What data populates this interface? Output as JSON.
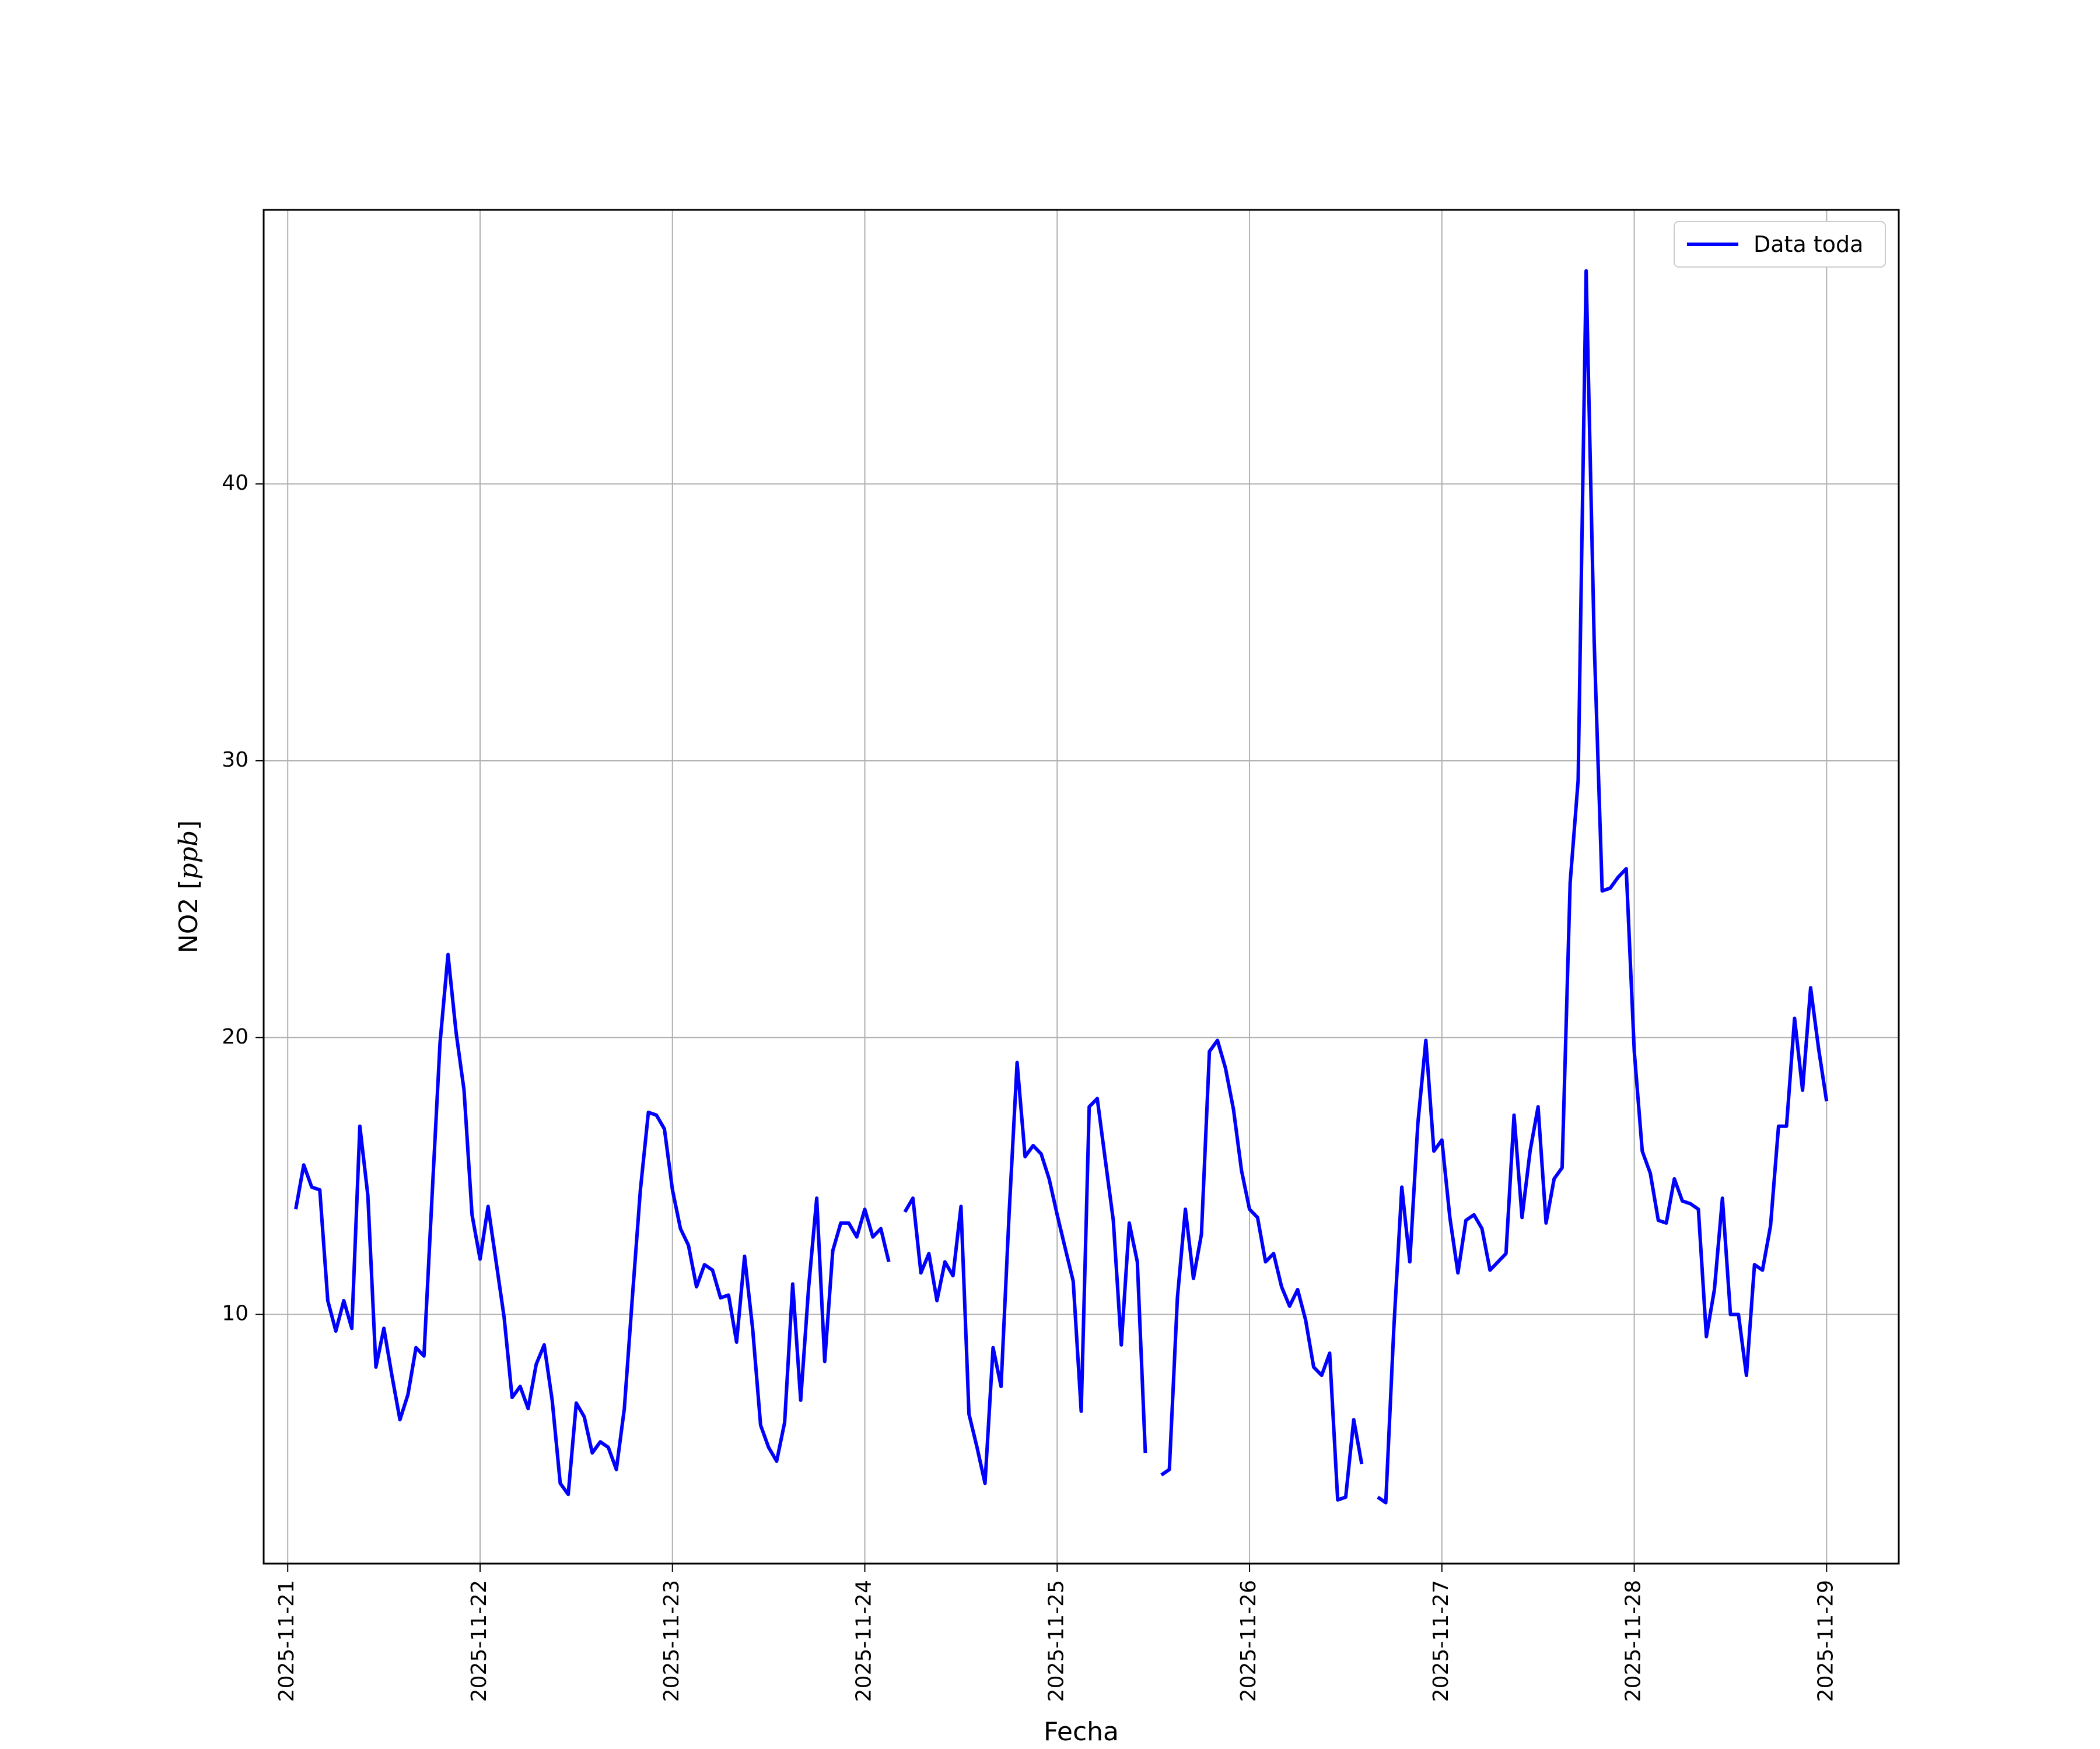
{
  "chart_data": {
    "type": "line",
    "title": "",
    "xlabel": "Fecha",
    "ylabel": {
      "prefix": "NO2 [",
      "unit": "ppb",
      "suffix": "]"
    },
    "x_range": [
      "2025-11-20T21:00",
      "2025-11-29T09:00"
    ],
    "ylim": [
      1,
      49.9
    ],
    "grid": true,
    "legend_position": "top-right",
    "x_ticks": [
      "2025-11-21",
      "2025-11-22",
      "2025-11-23",
      "2025-11-24",
      "2025-11-25",
      "2025-11-26",
      "2025-11-27",
      "2025-11-28",
      "2025-11-29"
    ],
    "y_ticks": [
      10,
      20,
      30,
      40
    ],
    "series": [
      {
        "name": "Data toda",
        "color": "#0000ff",
        "x": [
          "2025-11-21T01:00",
          "2025-11-21T02:00",
          "2025-11-21T03:00",
          "2025-11-21T04:00",
          "2025-11-21T05:00",
          "2025-11-21T06:00",
          "2025-11-21T07:00",
          "2025-11-21T08:00",
          "2025-11-21T09:00",
          "2025-11-21T10:00",
          "2025-11-21T11:00",
          "2025-11-21T12:00",
          "2025-11-21T13:00",
          "2025-11-21T14:00",
          "2025-11-21T15:00",
          "2025-11-21T16:00",
          "2025-11-21T17:00",
          "2025-11-21T18:00",
          "2025-11-21T19:00",
          "2025-11-21T20:00",
          "2025-11-21T21:00",
          "2025-11-21T22:00",
          "2025-11-21T23:00",
          "2025-11-22T00:00",
          "2025-11-22T01:00",
          "2025-11-22T02:00",
          "2025-11-22T03:00",
          "2025-11-22T04:00",
          "2025-11-22T05:00",
          "2025-11-22T06:00",
          "2025-11-22T07:00",
          "2025-11-22T08:00",
          "2025-11-22T09:00",
          "2025-11-22T10:00",
          "2025-11-22T11:00",
          "2025-11-22T12:00",
          "2025-11-22T13:00",
          "2025-11-22T14:00",
          "2025-11-22T15:00",
          "2025-11-22T16:00",
          "2025-11-22T17:00",
          "2025-11-22T18:00",
          "2025-11-22T19:00",
          "2025-11-22T20:00",
          "2025-11-22T21:00",
          "2025-11-22T22:00",
          "2025-11-22T23:00",
          "2025-11-23T00:00",
          "2025-11-23T01:00",
          "2025-11-23T02:00",
          "2025-11-23T03:00",
          "2025-11-23T04:00",
          "2025-11-23T05:00",
          "2025-11-23T06:00",
          "2025-11-23T07:00",
          "2025-11-23T08:00",
          "2025-11-23T09:00",
          "2025-11-23T10:00",
          "2025-11-23T11:00",
          "2025-11-23T12:00",
          "2025-11-23T13:00",
          "2025-11-23T14:00",
          "2025-11-23T15:00",
          "2025-11-23T16:00",
          "2025-11-23T17:00",
          "2025-11-23T18:00",
          "2025-11-23T19:00",
          "2025-11-23T20:00",
          "2025-11-23T21:00",
          "2025-11-23T22:00",
          "2025-11-23T23:00",
          "2025-11-24T00:00",
          "2025-11-24T01:00",
          "2025-11-24T02:00",
          "2025-11-24T03:00",
          null,
          "2025-11-24T05:00",
          "2025-11-24T06:00",
          "2025-11-24T07:00",
          "2025-11-24T08:00",
          "2025-11-24T09:00",
          "2025-11-24T10:00",
          "2025-11-24T11:00",
          "2025-11-24T12:00",
          "2025-11-24T13:00",
          "2025-11-24T14:00",
          "2025-11-24T15:00",
          "2025-11-24T16:00",
          "2025-11-24T17:00",
          "2025-11-24T18:00",
          "2025-11-24T19:00",
          "2025-11-24T20:00",
          "2025-11-24T21:00",
          "2025-11-24T22:00",
          "2025-11-24T23:00",
          "2025-11-25T00:00",
          "2025-11-25T01:00",
          "2025-11-25T02:00",
          "2025-11-25T03:00",
          "2025-11-25T04:00",
          "2025-11-25T05:00",
          "2025-11-25T06:00",
          "2025-11-25T07:00",
          "2025-11-25T08:00",
          "2025-11-25T09:00",
          "2025-11-25T10:00",
          "2025-11-25T11:00",
          null,
          "2025-11-25T13:00",
          "2025-11-25T14:00",
          "2025-11-25T15:00",
          "2025-11-25T16:00",
          "2025-11-25T17:00",
          "2025-11-25T18:00",
          "2025-11-25T19:00",
          "2025-11-25T20:00",
          "2025-11-25T21:00",
          "2025-11-25T22:00",
          "2025-11-25T23:00",
          "2025-11-26T00:00",
          "2025-11-26T01:00",
          "2025-11-26T02:00",
          "2025-11-26T03:00",
          "2025-11-26T04:00",
          "2025-11-26T05:00",
          "2025-11-26T06:00",
          "2025-11-26T07:00",
          "2025-11-26T08:00",
          "2025-11-26T09:00",
          "2025-11-26T10:00",
          "2025-11-26T11:00",
          "2025-11-26T12:00",
          "2025-11-26T13:00",
          "2025-11-26T14:00",
          null,
          "2025-11-26T16:00",
          "2025-11-26T17:00",
          "2025-11-26T18:00",
          "2025-11-26T19:00",
          "2025-11-26T20:00",
          "2025-11-26T21:00",
          "2025-11-26T22:00",
          "2025-11-26T23:00",
          "2025-11-27T00:00",
          "2025-11-27T01:00",
          "2025-11-27T02:00",
          "2025-11-27T03:00",
          "2025-11-27T04:00",
          "2025-11-27T05:00",
          "2025-11-27T06:00",
          "2025-11-27T07:00",
          "2025-11-27T08:00",
          "2025-11-27T09:00",
          "2025-11-27T10:00",
          "2025-11-27T11:00",
          "2025-11-27T12:00",
          "2025-11-27T13:00",
          "2025-11-27T14:00",
          "2025-11-27T15:00",
          "2025-11-27T16:00",
          "2025-11-27T17:00",
          "2025-11-27T18:00",
          "2025-11-27T19:00",
          "2025-11-27T20:00",
          "2025-11-27T21:00",
          "2025-11-27T22:00",
          "2025-11-27T23:00",
          "2025-11-28T00:00",
          "2025-11-28T01:00",
          "2025-11-28T02:00",
          "2025-11-28T03:00",
          "2025-11-28T04:00",
          "2025-11-28T05:00",
          "2025-11-28T06:00",
          "2025-11-28T07:00",
          "2025-11-28T08:00",
          "2025-11-28T09:00",
          "2025-11-28T10:00",
          "2025-11-28T11:00",
          "2025-11-28T12:00",
          "2025-11-28T13:00",
          "2025-11-28T14:00",
          "2025-11-28T15:00",
          "2025-11-28T16:00",
          "2025-11-28T17:00",
          "2025-11-28T18:00",
          "2025-11-28T19:00",
          "2025-11-28T20:00",
          "2025-11-28T21:00",
          "2025-11-28T22:00",
          "2025-11-28T23:00",
          "2025-11-29T00:00"
        ],
        "y": [
          13.8,
          15.4,
          14.6,
          14.5,
          10.5,
          9.4,
          10.5,
          9.5,
          16.8,
          14.3,
          8.1,
          9.5,
          7.8,
          6.2,
          7.1,
          8.8,
          8.5,
          14.2,
          19.8,
          23.0,
          20.2,
          18.1,
          13.6,
          12.0,
          13.9,
          11.9,
          9.9,
          7.0,
          7.4,
          6.6,
          8.2,
          8.9,
          6.9,
          3.9,
          3.5,
          6.8,
          6.3,
          5.0,
          5.4,
          5.2,
          4.4,
          6.6,
          10.6,
          14.5,
          17.3,
          17.2,
          16.7,
          14.5,
          13.1,
          12.5,
          11.0,
          11.8,
          11.6,
          10.6,
          10.7,
          9.0,
          12.1,
          9.5,
          6.0,
          5.2,
          4.7,
          6.1,
          11.1,
          6.9,
          11.0,
          14.2,
          8.3,
          12.3,
          13.3,
          13.3,
          12.8,
          13.8,
          12.8,
          13.1,
          11.9,
          null,
          13.7,
          14.2,
          11.5,
          12.2,
          10.5,
          11.9,
          11.4,
          13.9,
          6.4,
          5.2,
          3.9,
          8.8,
          7.4,
          13.6,
          19.1,
          15.7,
          16.1,
          15.8,
          14.9,
          13.6,
          12.4,
          11.2,
          6.5,
          17.5,
          17.8,
          15.6,
          13.4,
          8.9,
          13.3,
          11.9,
          5.0,
          null,
          4.2,
          4.4,
          10.6,
          13.8,
          11.3,
          12.9,
          19.5,
          19.9,
          18.9,
          17.4,
          15.2,
          13.8,
          13.5,
          11.9,
          12.2,
          11.0,
          10.3,
          10.9,
          9.8,
          8.1,
          7.8,
          8.6,
          3.3,
          3.4,
          6.2,
          4.6,
          null,
          3.4,
          3.2,
          9.5,
          14.6,
          11.9,
          16.9,
          19.9,
          15.9,
          16.3,
          13.5,
          11.5,
          13.4,
          13.6,
          13.1,
          11.6,
          11.9,
          12.2,
          17.2,
          13.5,
          15.9,
          17.5,
          13.3,
          14.9,
          15.3,
          25.6,
          29.3,
          47.7,
          34.3,
          25.3,
          25.4,
          25.8,
          26.1,
          19.5,
          15.9,
          15.1,
          13.4,
          13.3,
          14.9,
          14.1,
          14.0,
          13.8,
          9.2,
          10.9,
          14.2,
          10.0,
          10.0,
          7.8,
          11.8,
          11.6,
          13.2,
          16.8,
          16.8,
          20.7,
          18.1,
          21.8,
          19.6,
          17.7
        ]
      }
    ]
  }
}
